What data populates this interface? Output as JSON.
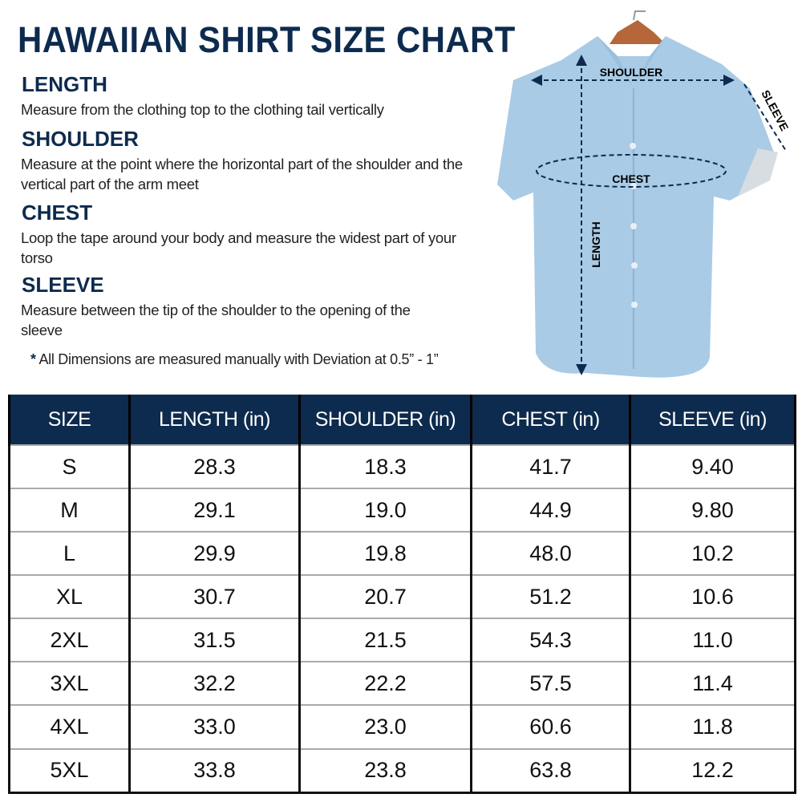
{
  "title": "HAWAIIAN SHIRT SIZE CHART",
  "sections": [
    {
      "heading": "LENGTH",
      "text": "Measure from the clothing top to the clothing tail vertically"
    },
    {
      "heading": "SHOULDER",
      "text": "Measure at the point where the horizontal part of the shoulder and the vertical part of the arm meet"
    },
    {
      "heading": "CHEST",
      "text": "Loop the tape around your body and measure the widest part of your torso"
    },
    {
      "heading": "SLEEVE",
      "text": "Measure between the tip of the shoulder to the opening of the sleeve"
    }
  ],
  "note": {
    "star": "*",
    "text": "All Dimensions are measured manually with Deviation at 0.5” - 1”"
  },
  "diagram": {
    "shoulder": "SHOULDER",
    "chest": "CHEST",
    "length": "LENGTH",
    "sleeve": "SLEEVE"
  },
  "colors": {
    "navy": "#0d2b4e",
    "shirt": "#a9cbe6"
  },
  "table": {
    "headers": [
      "SIZE",
      "LENGTH (in)",
      "SHOULDER (in)",
      "CHEST (in)",
      "SLEEVE (in)"
    ],
    "rows": [
      [
        "S",
        "28.3",
        "18.3",
        "41.7",
        "9.40"
      ],
      [
        "M",
        "29.1",
        "19.0",
        "44.9",
        "9.80"
      ],
      [
        "L",
        "29.9",
        "19.8",
        "48.0",
        "10.2"
      ],
      [
        "XL",
        "30.7",
        "20.7",
        "51.2",
        "10.6"
      ],
      [
        "2XL",
        "31.5",
        "21.5",
        "54.3",
        "11.0"
      ],
      [
        "3XL",
        "32.2",
        "22.2",
        "57.5",
        "11.4"
      ],
      [
        "4XL",
        "33.0",
        "23.0",
        "60.6",
        "11.8"
      ],
      [
        "5XL",
        "33.8",
        "23.8",
        "63.8",
        "12.2"
      ]
    ]
  }
}
